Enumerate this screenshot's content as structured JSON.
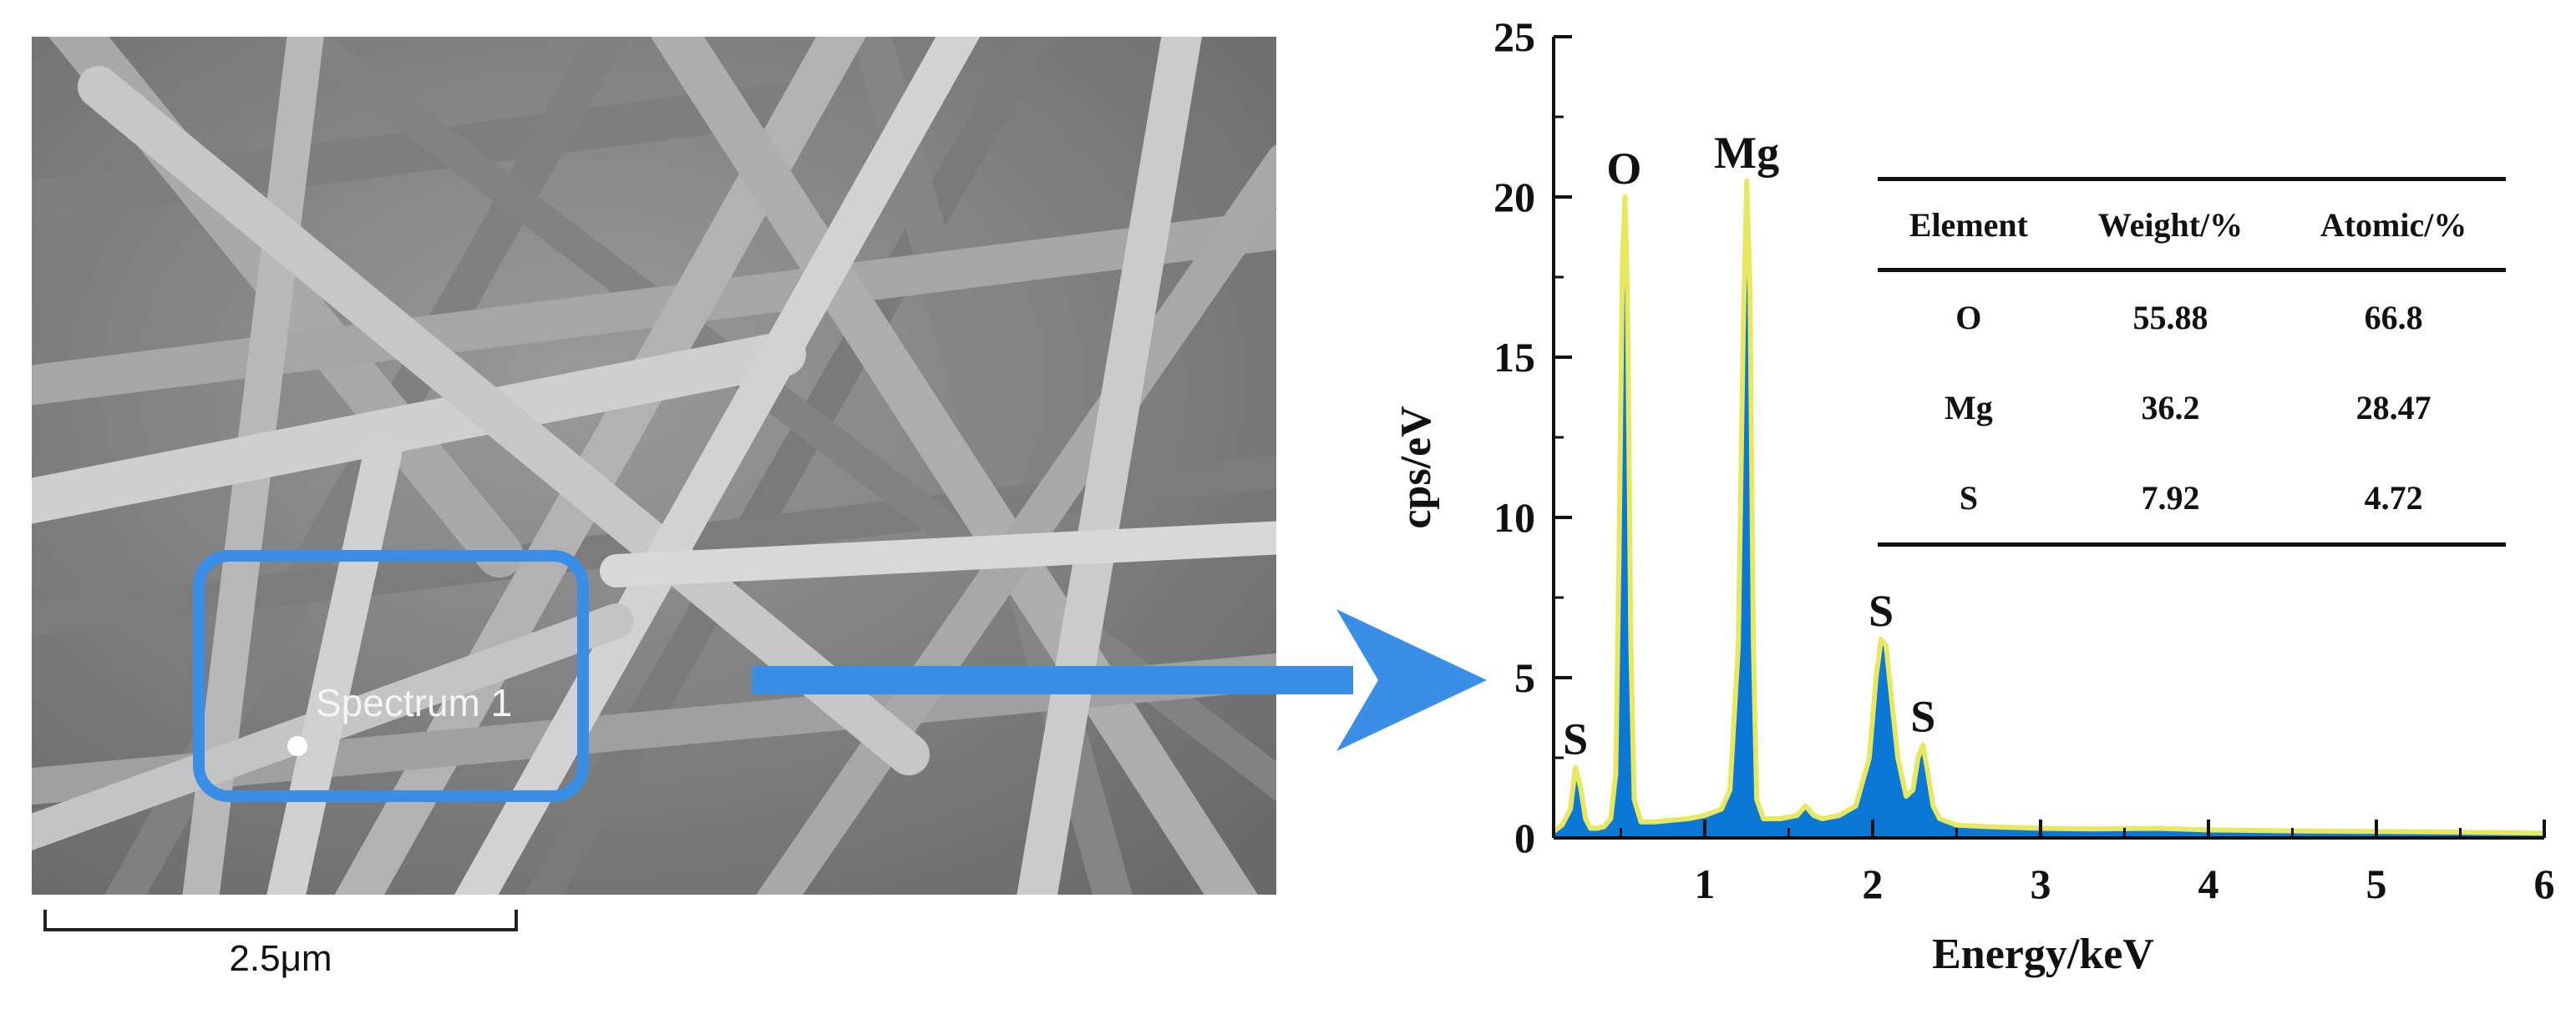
{
  "sem_image": {
    "spectrum_label": "Spectrum 1",
    "scale_bar_label": "2.5μm",
    "highlight_color": "#3a8ee6"
  },
  "colors": {
    "spectrum_fill": "#0b78d6",
    "spectrum_outline": "#e8e860",
    "arrow": "#3a8ee6"
  },
  "chart_data": {
    "type": "area",
    "title": "",
    "xlabel": "Energy/keV",
    "ylabel": "cps/eV",
    "xlim": [
      0.1,
      6
    ],
    "ylim": [
      0,
      25
    ],
    "x_ticks": [
      "1",
      "2",
      "3",
      "4",
      "5",
      "6"
    ],
    "x_tick_values": [
      1,
      2,
      3,
      4,
      5,
      6
    ],
    "y_ticks": [
      "0",
      "5",
      "10",
      "15",
      "20",
      "25"
    ],
    "y_tick_values": [
      0,
      5,
      10,
      15,
      20,
      25
    ],
    "series": [
      {
        "x": [
          0.1,
          0.15,
          0.2,
          0.23,
          0.26,
          0.29,
          0.32,
          0.36,
          0.4,
          0.44,
          0.47,
          0.49,
          0.51,
          0.525,
          0.54,
          0.56,
          0.58,
          0.62,
          0.7,
          0.8,
          0.9,
          1.0,
          1.1,
          1.15,
          1.2,
          1.23,
          1.25,
          1.27,
          1.29,
          1.31,
          1.35,
          1.45,
          1.55,
          1.6,
          1.65,
          1.7,
          1.8,
          1.9,
          1.98,
          2.02,
          2.05,
          2.08,
          2.11,
          2.15,
          2.2,
          2.24,
          2.27,
          2.3,
          2.33,
          2.36,
          2.4,
          2.5,
          2.7,
          3.0,
          3.3,
          3.7,
          4.0,
          4.5,
          5.0,
          5.5,
          6.0
        ],
        "y": [
          0.2,
          0.4,
          0.9,
          2.2,
          1.6,
          0.6,
          0.3,
          0.3,
          0.35,
          0.6,
          2.0,
          9.0,
          18.0,
          20.0,
          17.0,
          6.0,
          1.2,
          0.5,
          0.5,
          0.55,
          0.6,
          0.7,
          0.9,
          1.5,
          6.0,
          16.0,
          20.5,
          17.0,
          6.0,
          1.2,
          0.6,
          0.6,
          0.7,
          1.0,
          0.7,
          0.6,
          0.7,
          1.0,
          2.5,
          5.0,
          6.2,
          6.0,
          4.5,
          2.5,
          1.3,
          1.5,
          2.5,
          2.9,
          2.0,
          1.0,
          0.6,
          0.4,
          0.35,
          0.3,
          0.28,
          0.3,
          0.25,
          0.22,
          0.2,
          0.18,
          0.15
        ]
      }
    ],
    "peak_labels": [
      {
        "text": "S",
        "x": 0.23,
        "y": 2.2
      },
      {
        "text": "O",
        "x": 0.52,
        "y": 20.0
      },
      {
        "text": "Mg",
        "x": 1.25,
        "y": 20.5
      },
      {
        "text": "S",
        "x": 2.05,
        "y": 6.2
      },
      {
        "text": "S",
        "x": 2.3,
        "y": 2.9
      }
    ],
    "table": {
      "headers": [
        "Element",
        "Weight/%",
        "Atomic/%"
      ],
      "rows": [
        [
          "O",
          "55.88",
          "66.8"
        ],
        [
          "Mg",
          "36.2",
          "28.47"
        ],
        [
          "S",
          "7.92",
          "4.72"
        ]
      ]
    }
  }
}
